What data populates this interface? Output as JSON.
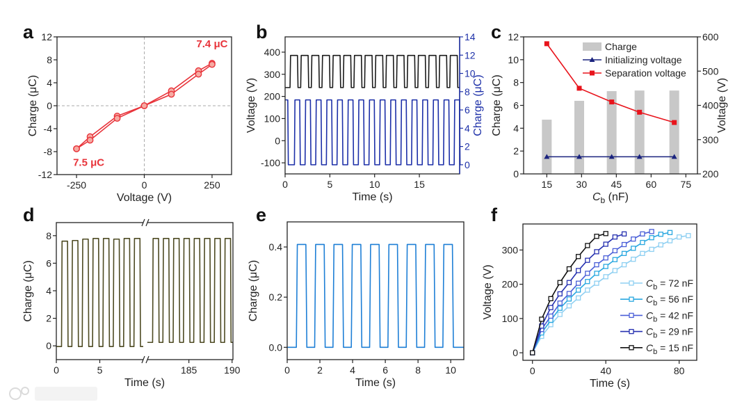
{
  "panel_labels": [
    "a",
    "b",
    "c",
    "d",
    "e",
    "f"
  ],
  "watermark": "大数跨境",
  "chart_data": [
    {
      "id": "a",
      "type": "line",
      "xlabel": "Voltage (V)",
      "ylabel": "Charge (μC)",
      "xlim": [
        -322,
        322
      ],
      "ylim": [
        -12,
        12
      ],
      "xticks": [
        -250,
        0,
        250
      ],
      "yticks": [
        -12,
        -8,
        -4,
        0,
        4,
        8,
        12
      ],
      "zero_lines": true,
      "x": [
        -250,
        -200,
        -100,
        0,
        100,
        200,
        250
      ],
      "series": [
        {
          "name": "branch-1",
          "values": [
            -7.5,
            -5.4,
            -1.8,
            0,
            2.6,
            6.1,
            7.4
          ]
        },
        {
          "name": "branch-2",
          "values": [
            -7.5,
            -6.0,
            -2.2,
            0,
            2.0,
            5.5,
            7.2
          ]
        }
      ],
      "annotations": [
        {
          "text": "7.4 μC",
          "x": 250,
          "y": 10.2
        },
        {
          "text": "7.5 μC",
          "x": -205,
          "y": -10.5
        }
      ],
      "color": "#e8333a",
      "marker_fill": "#f6aaa2"
    },
    {
      "id": "b",
      "type": "line",
      "xlabel": "Time (s)",
      "ylabel": "Voltage (V)",
      "y2label": "Charge (μC)",
      "xlim": [
        0,
        19.5
      ],
      "ylim": [
        -150,
        469
      ],
      "y2lim": [
        -1,
        14
      ],
      "xticks": [
        0,
        5,
        10,
        15
      ],
      "yticks": [
        -100,
        0,
        100,
        200,
        300,
        400
      ],
      "y2ticks": [
        0,
        2,
        4,
        6,
        8,
        10,
        12,
        14
      ],
      "y2color": "#1c2fa8",
      "waves": [
        {
          "name": "Voltage",
          "axis": "left",
          "low": 240,
          "high": 385,
          "t_range": [
            0,
            19.5
          ],
          "first_rise": 0.55,
          "period": 1.19,
          "duty": 0.7,
          "pulses": 16,
          "initial_high_until": 0,
          "color": "#1a1a1a"
        },
        {
          "name": "Charge",
          "axis": "right",
          "low": 0,
          "high": 7.1,
          "t_range": [
            0,
            19.5
          ],
          "first_rise": 1.04,
          "period": 1.19,
          "duty": 0.5,
          "pulses": 16,
          "initial_high_until": 0.3,
          "color": "#1c2fa8"
        }
      ]
    },
    {
      "id": "c",
      "type": "bar+line",
      "xlabel_symbol": "C",
      "xlabel_sub": "b",
      "xlabel_rest": " (nF)",
      "ylabel": "Charge (μC)",
      "y2label": "Voltage (V)",
      "xlim": [
        5,
        80
      ],
      "ylim": [
        0,
        12
      ],
      "y2lim": [
        200,
        600
      ],
      "xticks": [
        15,
        30,
        45,
        60,
        75
      ],
      "yticks": [
        0,
        2,
        4,
        6,
        8,
        10,
        12
      ],
      "y2ticks": [
        200,
        300,
        400,
        500,
        600
      ],
      "y2color": "#222222",
      "x": [
        15,
        29,
        43,
        55,
        70
      ],
      "bars": {
        "name": "Charge",
        "values": [
          4.75,
          6.4,
          7.25,
          7.3,
          7.3
        ],
        "color": "#c8c8c8",
        "width": 4.2
      },
      "series": [
        {
          "name": "Initializing voltage",
          "axis": "right",
          "values": [
            250,
            250,
            250,
            250,
            250
          ],
          "color": "#1a237e",
          "marker": "triangle"
        },
        {
          "name": "Separation voltage",
          "axis": "right",
          "values": [
            580,
            450,
            410,
            380,
            350
          ],
          "color": "#e8141c",
          "marker": "square"
        }
      ],
      "legend": [
        "Charge",
        "Initializing voltage",
        "Separation voltage"
      ],
      "legend_position": "top-right"
    },
    {
      "id": "d",
      "type": "line",
      "xlabel": "Time (s)",
      "ylabel": "Charge (μC)",
      "x_segments": [
        [
          0,
          10
        ],
        [
          180.2,
          190.1
        ]
      ],
      "axis_break": true,
      "ylim": [
        -1,
        8.95
      ],
      "xticks": [
        0,
        5,
        185,
        190
      ],
      "yticks": [
        0,
        2,
        4,
        6,
        8
      ],
      "waves": [
        {
          "name": "Charge early",
          "low": -0.05,
          "highs": [
            7.6,
            7.65,
            7.75,
            7.8,
            7.8,
            7.75,
            7.8,
            7.8
          ],
          "t_range": [
            0,
            10
          ],
          "first_rise": 0.6,
          "period": 1.19,
          "duty": 0.58,
          "pulses": 8,
          "initial_high_until": 0,
          "color": "#4d4a22"
        },
        {
          "name": "Charge late",
          "low": 0.25,
          "highs": [
            7.8,
            7.8,
            7.8,
            7.8,
            7.8,
            7.8,
            7.8,
            7.8
          ],
          "t_range": [
            180.2,
            190.1
          ],
          "first_rise": 180.8,
          "period": 1.19,
          "duty": 0.58,
          "pulses": 8,
          "initial_high_until": 0,
          "color": "#4d4a22"
        }
      ]
    },
    {
      "id": "e",
      "type": "line",
      "xlabel": "Time (s)",
      "ylabel": "Charge (μC)",
      "xlim": [
        0,
        10.8
      ],
      "ylim": [
        -0.049,
        0.5
      ],
      "xticks": [
        0,
        2,
        4,
        6,
        8,
        10
      ],
      "yticks": [
        "0.0",
        "0.2",
        "0.4"
      ],
      "waves": [
        {
          "name": "Charge",
          "low": 0,
          "high": 0.41,
          "t_range": [
            0,
            10.8
          ],
          "first_rise": 0.56,
          "period": 1.12,
          "duty": 0.52,
          "pulses": 9,
          "initial_high_until": 0,
          "color": "#1e7fd6"
        }
      ]
    },
    {
      "id": "f",
      "type": "line",
      "xlabel": "Time (s)",
      "ylabel": "Voltage (V)",
      "xlim": [
        -5.2,
        89.6
      ],
      "ylim": [
        -22,
        376
      ],
      "xticks": [
        0,
        40,
        80
      ],
      "yticks": [
        0,
        100,
        200,
        300
      ],
      "legend_position": "bottom-right",
      "series": [
        {
          "label_symbol": "C",
          "label_sub": "b",
          "label_rest": " = 72 nF",
          "color": "#8fd0f2",
          "step": 5,
          "values": [
            0,
            48,
            82,
            112,
            137,
            160,
            183,
            203,
            222,
            240,
            257,
            273,
            290,
            302,
            315,
            327,
            338,
            342
          ]
        },
        {
          "label_symbol": "C",
          "label_sub": "b",
          "label_rest": " = 56 nF",
          "color": "#2aa8e0",
          "step": 5,
          "values": [
            0,
            58,
            95,
            130,
            157,
            183,
            208,
            232,
            252,
            272,
            290,
            305,
            322,
            336,
            346,
            351
          ]
        },
        {
          "label_symbol": "C",
          "label_sub": "b",
          "label_rest": " = 42 nF",
          "color": "#4a5fd8",
          "step": 5,
          "values": [
            0,
            68,
            107,
            145,
            173,
            203,
            232,
            257,
            277,
            298,
            316,
            332,
            347,
            354
          ]
        },
        {
          "label_symbol": "C",
          "label_sub": "b",
          "label_rest": " = 29 nF",
          "color": "#2530b0",
          "step": 5,
          "values": [
            0,
            78,
            132,
            172,
            205,
            240,
            270,
            295,
            317,
            338,
            347
          ]
        },
        {
          "label_symbol": "C",
          "label_sub": "b",
          "label_rest": " = 15 nF",
          "color": "#111111",
          "step": 5,
          "values": [
            0,
            98,
            158,
            205,
            245,
            281,
            313,
            340,
            348
          ]
        }
      ]
    }
  ]
}
